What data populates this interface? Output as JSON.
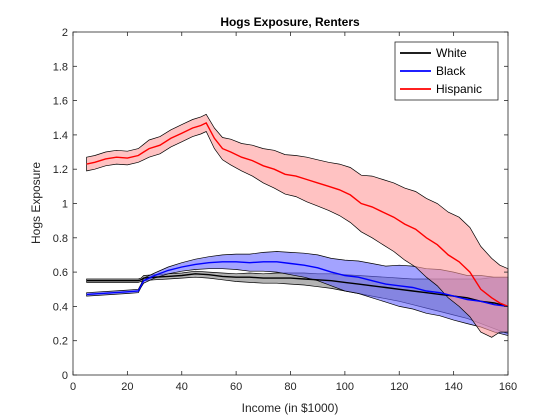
{
  "chart_data": {
    "type": "line",
    "title": "Hogs Exposure, Renters",
    "xlabel": "Income (in $1000)",
    "ylabel": "Hogs Exposure",
    "xlim": [
      0,
      160
    ],
    "ylim": [
      0,
      2
    ],
    "xticks": [
      0,
      20,
      40,
      60,
      80,
      100,
      120,
      140,
      160
    ],
    "yticks": [
      0,
      0.2,
      0.4,
      0.6,
      0.8,
      1,
      1.2,
      1.4,
      1.6,
      1.8,
      2
    ],
    "legend_position": "top-right",
    "grid": false,
    "series": [
      {
        "name": "White",
        "color": "#000000",
        "fill": "#808080",
        "x": [
          5,
          15,
          20,
          24,
          25,
          26,
          30,
          35,
          40,
          45,
          50,
          55,
          60,
          65,
          70,
          75,
          80,
          85,
          90,
          95,
          100,
          105,
          110,
          115,
          120,
          125,
          130,
          135,
          140,
          145,
          150,
          155,
          160
        ],
        "y": [
          0.55,
          0.55,
          0.55,
          0.55,
          0.555,
          0.565,
          0.57,
          0.575,
          0.58,
          0.59,
          0.585,
          0.575,
          0.57,
          0.57,
          0.565,
          0.565,
          0.565,
          0.56,
          0.555,
          0.55,
          0.54,
          0.53,
          0.52,
          0.51,
          0.5,
          0.49,
          0.48,
          0.47,
          0.46,
          0.45,
          0.43,
          0.42,
          0.4
        ],
        "lower": [
          0.54,
          0.54,
          0.54,
          0.54,
          0.545,
          0.55,
          0.555,
          0.56,
          0.565,
          0.57,
          0.565,
          0.555,
          0.545,
          0.54,
          0.535,
          0.535,
          0.53,
          0.525,
          0.515,
          0.505,
          0.49,
          0.475,
          0.46,
          0.445,
          0.43,
          0.41,
          0.39,
          0.37,
          0.35,
          0.33,
          0.3,
          0.27,
          0.24
        ],
        "upper": [
          0.56,
          0.56,
          0.56,
          0.56,
          0.565,
          0.58,
          0.585,
          0.59,
          0.595,
          0.605,
          0.6,
          0.595,
          0.59,
          0.595,
          0.59,
          0.595,
          0.595,
          0.595,
          0.59,
          0.59,
          0.585,
          0.58,
          0.575,
          0.57,
          0.565,
          0.56,
          0.56,
          0.56,
          0.56,
          0.56,
          0.56,
          0.57,
          0.57
        ]
      },
      {
        "name": "Black",
        "color": "#0000ff",
        "fill": "#6666ff",
        "x": [
          5,
          15,
          20,
          24,
          25,
          26,
          30,
          35,
          40,
          45,
          50,
          55,
          60,
          65,
          70,
          75,
          80,
          85,
          90,
          95,
          100,
          105,
          110,
          115,
          120,
          125,
          130,
          135,
          140,
          145,
          150,
          155,
          160
        ],
        "y": [
          0.47,
          0.48,
          0.485,
          0.49,
          0.52,
          0.55,
          0.58,
          0.61,
          0.63,
          0.645,
          0.655,
          0.66,
          0.66,
          0.655,
          0.66,
          0.66,
          0.65,
          0.64,
          0.625,
          0.6,
          0.58,
          0.57,
          0.55,
          0.53,
          0.52,
          0.51,
          0.49,
          0.48,
          0.46,
          0.44,
          0.43,
          0.41,
          0.4
        ],
        "lower": [
          0.46,
          0.47,
          0.475,
          0.48,
          0.51,
          0.535,
          0.565,
          0.59,
          0.605,
          0.615,
          0.62,
          0.62,
          0.615,
          0.605,
          0.605,
          0.6,
          0.585,
          0.57,
          0.55,
          0.52,
          0.49,
          0.475,
          0.45,
          0.425,
          0.4,
          0.385,
          0.36,
          0.345,
          0.32,
          0.3,
          0.28,
          0.25,
          0.23
        ],
        "upper": [
          0.48,
          0.49,
          0.495,
          0.5,
          0.53,
          0.565,
          0.595,
          0.63,
          0.655,
          0.675,
          0.69,
          0.7,
          0.705,
          0.705,
          0.715,
          0.72,
          0.715,
          0.71,
          0.7,
          0.68,
          0.67,
          0.665,
          0.65,
          0.635,
          0.64,
          0.635,
          0.62,
          0.615,
          0.6,
          0.58,
          0.58,
          0.57,
          0.57
        ]
      },
      {
        "name": "Hispanic",
        "color": "#ff0000",
        "fill": "#ff9999",
        "x": [
          5,
          8,
          12,
          16,
          20,
          24,
          26,
          28,
          32,
          36,
          40,
          44,
          47,
          49,
          52,
          55,
          58,
          62,
          66,
          70,
          74,
          78,
          82,
          86,
          90,
          94,
          98,
          102,
          106,
          110,
          114,
          118,
          122,
          126,
          130,
          134,
          138,
          142,
          146,
          150,
          154,
          157,
          160
        ],
        "y": [
          1.23,
          1.24,
          1.26,
          1.27,
          1.265,
          1.28,
          1.3,
          1.32,
          1.34,
          1.38,
          1.41,
          1.44,
          1.455,
          1.47,
          1.38,
          1.32,
          1.3,
          1.27,
          1.25,
          1.22,
          1.2,
          1.17,
          1.16,
          1.14,
          1.12,
          1.1,
          1.08,
          1.05,
          1.0,
          0.98,
          0.95,
          0.92,
          0.88,
          0.85,
          0.8,
          0.76,
          0.7,
          0.66,
          0.6,
          0.5,
          0.45,
          0.42,
          0.4
        ],
        "lower": [
          1.19,
          1.2,
          1.22,
          1.23,
          1.225,
          1.24,
          1.255,
          1.27,
          1.29,
          1.33,
          1.36,
          1.39,
          1.405,
          1.42,
          1.32,
          1.255,
          1.225,
          1.19,
          1.16,
          1.12,
          1.09,
          1.055,
          1.04,
          1.01,
          0.985,
          0.96,
          0.93,
          0.89,
          0.835,
          0.8,
          0.76,
          0.72,
          0.67,
          0.63,
          0.57,
          0.52,
          0.45,
          0.4,
          0.34,
          0.25,
          0.22,
          0.25,
          0.25
        ],
        "upper": [
          1.27,
          1.28,
          1.3,
          1.31,
          1.305,
          1.32,
          1.345,
          1.37,
          1.39,
          1.43,
          1.46,
          1.49,
          1.505,
          1.52,
          1.44,
          1.385,
          1.375,
          1.35,
          1.34,
          1.32,
          1.31,
          1.285,
          1.28,
          1.27,
          1.255,
          1.24,
          1.23,
          1.21,
          1.165,
          1.16,
          1.14,
          1.12,
          1.09,
          1.07,
          1.03,
          1.0,
          0.95,
          0.92,
          0.86,
          0.75,
          0.68,
          0.64,
          0.62
        ]
      }
    ]
  }
}
